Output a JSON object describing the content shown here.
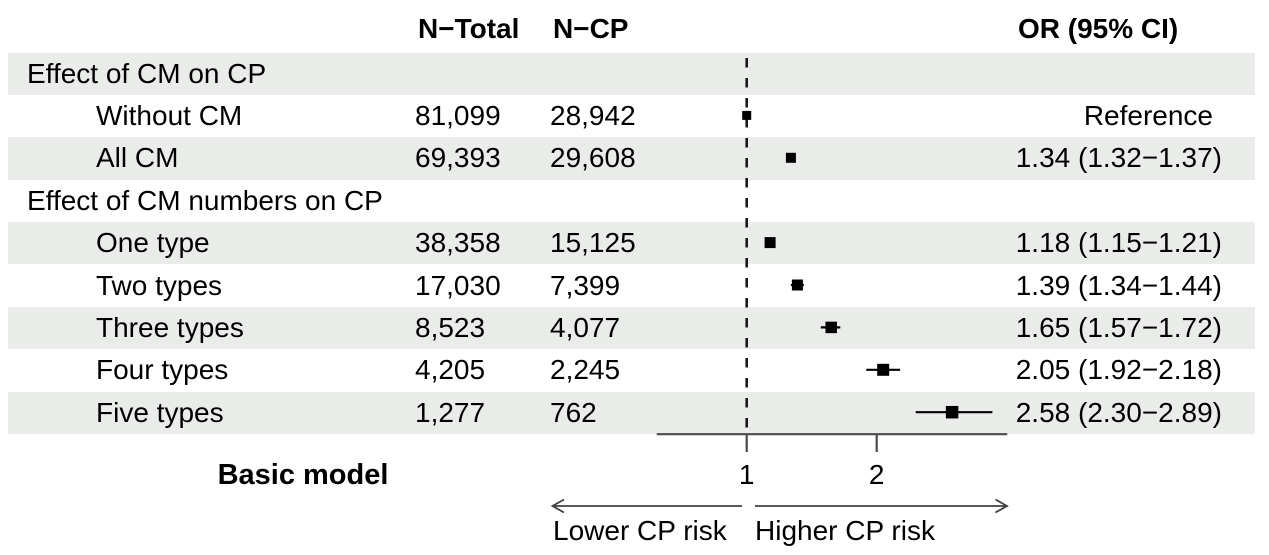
{
  "header": {
    "n_total": "N−Total",
    "n_cp": "N−CP",
    "or_ci": "OR (95% CI)"
  },
  "rows": [
    {
      "type": "section",
      "label": "Effect of CM on CP",
      "n_total": "",
      "n_cp": "",
      "or_text": "",
      "shaded": true
    },
    {
      "type": "item",
      "label": "Without CM",
      "n_total": "81,099",
      "n_cp": "28,942",
      "or_text": "Reference",
      "reference": true,
      "shaded": false
    },
    {
      "type": "item",
      "label": "All CM",
      "n_total": "69,393",
      "n_cp": "29,608",
      "or_text": "1.34 (1.32−1.37)",
      "shaded": true
    },
    {
      "type": "section",
      "label": "Effect of CM numbers on CP",
      "n_total": "",
      "n_cp": "",
      "or_text": "",
      "shaded": false
    },
    {
      "type": "item",
      "label": "One type",
      "n_total": "38,358",
      "n_cp": "15,125",
      "or_text": "1.18 (1.15−1.21)",
      "shaded": true
    },
    {
      "type": "item",
      "label": "Two types",
      "n_total": "17,030",
      "n_cp": "7,399",
      "or_text": "1.39 (1.34−1.44)",
      "shaded": false
    },
    {
      "type": "item",
      "label": "Three types",
      "n_total": "8,523",
      "n_cp": "4,077",
      "or_text": "1.65 (1.57−1.72)",
      "shaded": true
    },
    {
      "type": "item",
      "label": "Four types",
      "n_total": "4,205",
      "n_cp": "2,245",
      "or_text": "2.05 (1.92−2.18)",
      "shaded": false
    },
    {
      "type": "item",
      "label": "Five types",
      "n_total": "1,277",
      "n_cp": "762",
      "or_text": "2.58 (2.30−2.89)",
      "shaded": true
    }
  ],
  "footer": {
    "model_label": "Basic model",
    "ticks": [
      "1",
      "2"
    ],
    "lower_label": "Lower CP risk",
    "higher_label": "Higher CP risk"
  },
  "colors": {
    "stripe": "#e9ece9",
    "axis": "#4a4a4a",
    "marker": "#000000",
    "reference_line": "#1a1a1a"
  },
  "chart_data": {
    "type": "scatter",
    "subtype": "forest-plot",
    "title": "Basic model",
    "xlabel": "OR (95% CI)",
    "x_axis": {
      "scale": "linear",
      "ticks": [
        1,
        2
      ],
      "drawn_range": [
        0.31,
        3.0
      ],
      "reference_line": 1
    },
    "direction_annotations": {
      "left_of_1": "Lower CP risk",
      "right_of_1": "Higher CP risk"
    },
    "points": [
      {
        "label": "Without CM",
        "group": "Effect of CM on CP",
        "n_total": 81099,
        "n_cp": 28942,
        "or": 1.0,
        "ci_low": null,
        "ci_high": null,
        "or_label": "Reference",
        "row_index": 1,
        "marker_size": 9
      },
      {
        "label": "All CM",
        "group": "Effect of CM on CP",
        "n_total": 69393,
        "n_cp": 29608,
        "or": 1.34,
        "ci_low": 1.32,
        "ci_high": 1.37,
        "or_label": "1.34 (1.32−1.37)",
        "row_index": 2,
        "marker_size": 10
      },
      {
        "label": "One type",
        "group": "Effect of CM numbers on CP",
        "n_total": 38358,
        "n_cp": 15125,
        "or": 1.18,
        "ci_low": 1.15,
        "ci_high": 1.21,
        "or_label": "1.18 (1.15−1.21)",
        "row_index": 4,
        "marker_size": 11
      },
      {
        "label": "Two types",
        "group": "Effect of CM numbers on CP",
        "n_total": 17030,
        "n_cp": 7399,
        "or": 1.39,
        "ci_low": 1.34,
        "ci_high": 1.44,
        "or_label": "1.39 (1.34−1.44)",
        "row_index": 5,
        "marker_size": 11
      },
      {
        "label": "Three types",
        "group": "Effect of CM numbers on CP",
        "n_total": 8523,
        "n_cp": 4077,
        "or": 1.65,
        "ci_low": 1.57,
        "ci_high": 1.72,
        "or_label": "1.65 (1.57−1.72)",
        "row_index": 6,
        "marker_size": 11.5
      },
      {
        "label": "Four types",
        "group": "Effect of CM numbers on CP",
        "n_total": 4205,
        "n_cp": 2245,
        "or": 2.05,
        "ci_low": 1.92,
        "ci_high": 2.18,
        "or_label": "2.05 (1.92−2.18)",
        "row_index": 7,
        "marker_size": 12
      },
      {
        "label": "Five types",
        "group": "Effect of CM numbers on CP",
        "n_total": 1277,
        "n_cp": 762,
        "or": 2.58,
        "ci_low": 2.3,
        "ci_high": 2.89,
        "or_label": "2.58 (2.30−2.89)",
        "row_index": 8,
        "marker_size": 12.5
      }
    ]
  }
}
